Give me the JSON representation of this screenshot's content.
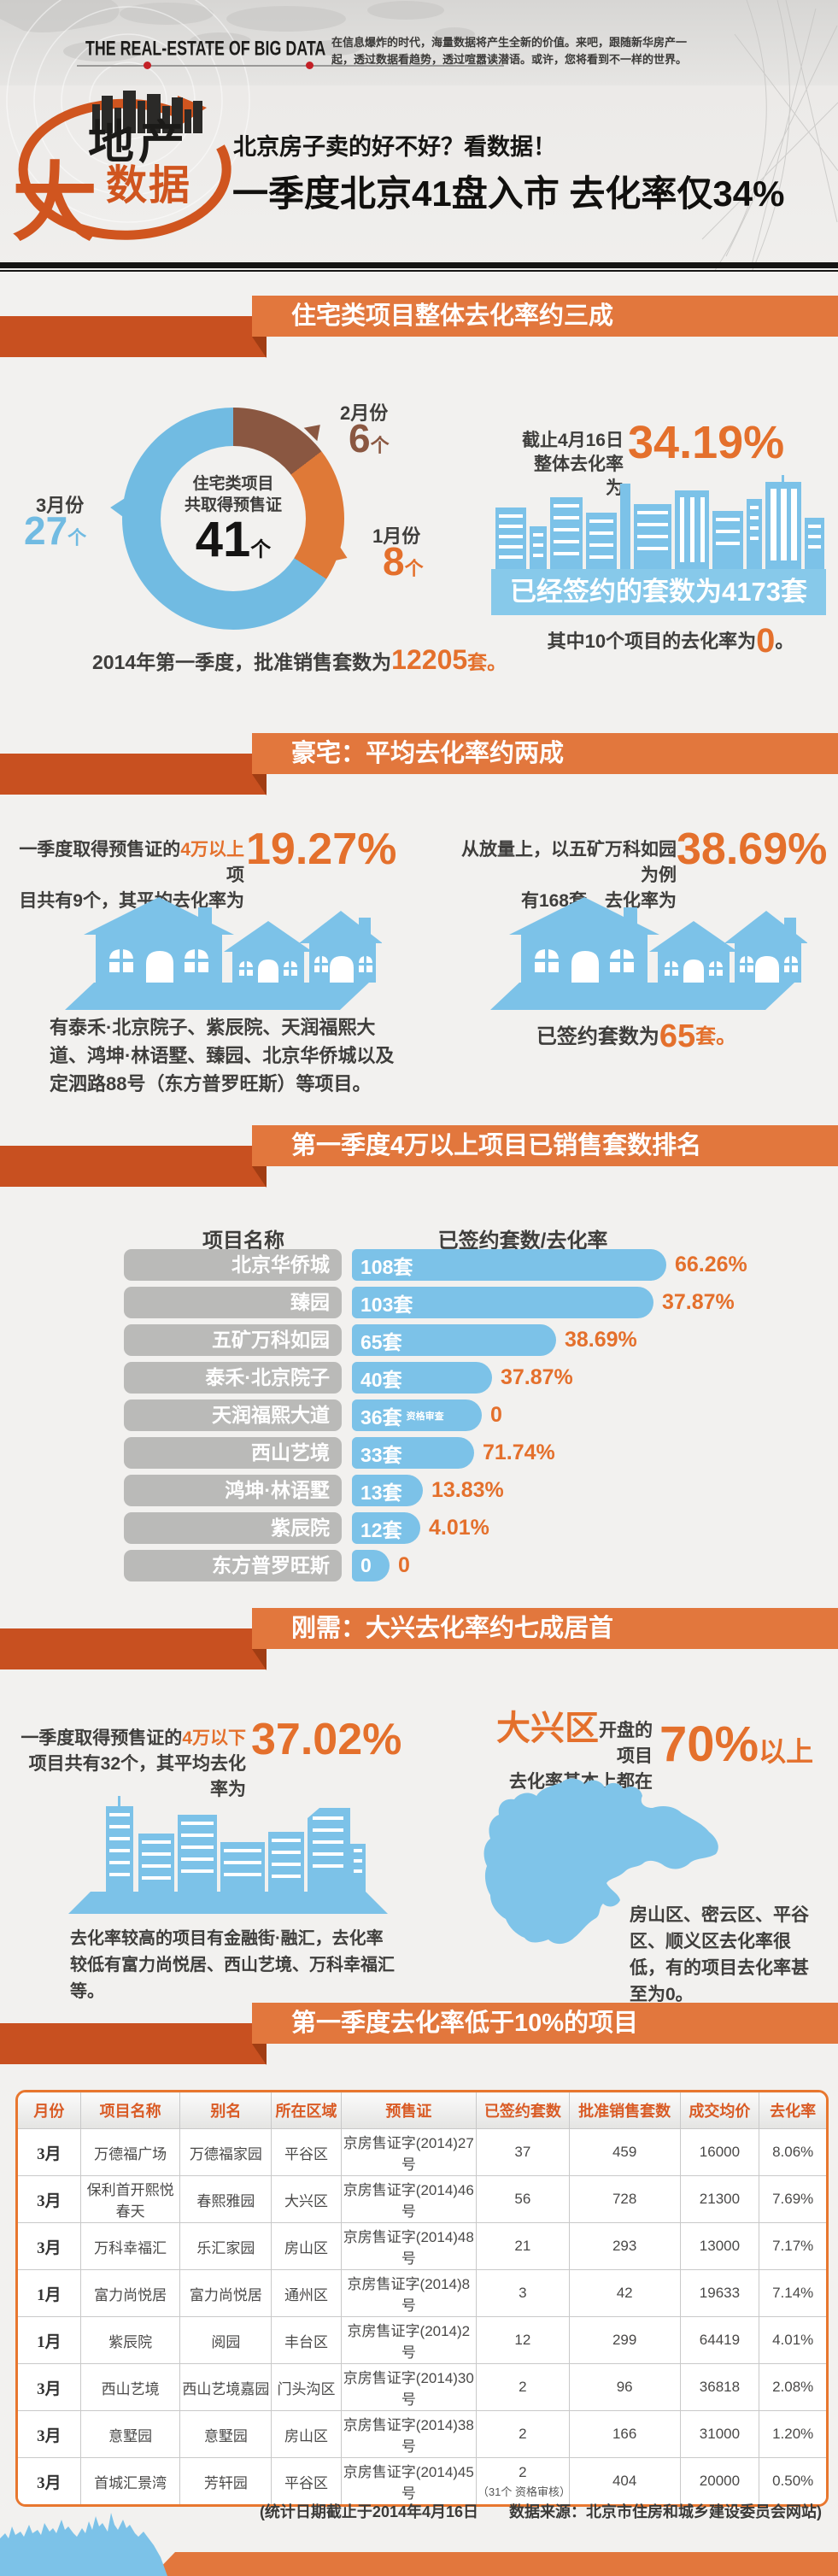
{
  "banner": {
    "en_title": "THE  REAL-ESTATE OF BIG DATA",
    "intro_line1": "在信息爆炸的时代，海量数据将产生全新的价值。来吧，跟随新华房产一",
    "intro_line2": "起，透过数据看趋势，透过喧嚣读潜语。或许，您将看到不一样的世界。"
  },
  "hero": {
    "logo_big": "大",
    "logo_word1": "地产",
    "logo_word2": "数据",
    "subtitle": "北京房子卖的好不好？看数据！",
    "title": "一季度北京41盘入市 去化率仅34%"
  },
  "colors": {
    "accent_orange": "#E4702C",
    "ribbon_orange": "#E2773D",
    "ribbon_dark": "#C85020",
    "blue": "#7CC2E8",
    "brown": "#8A5741"
  },
  "sections": {
    "s1": {
      "header": "住宅类项目整体去化率约三成",
      "donut": {
        "center_line1": "住宅类项目",
        "center_line2": "共取得预售证",
        "total": "41",
        "unit": "个",
        "feb_label": "2月份",
        "feb_value": "6",
        "feb_unit": "个",
        "jan_label": "1月份",
        "jan_value": "8",
        "jan_unit": "个",
        "mar_label": "3月份",
        "mar_value": "27",
        "mar_unit": "个"
      },
      "approved_prefix": "2014年第一季度，批准销售套数为",
      "approved_value": "12205",
      "approved_suffix": "套。",
      "right": {
        "line1": "截止4月16日",
        "line2": "整体去化率为",
        "rate": "34.19%",
        "band": "已经签约的套数为4173套",
        "below_prefix": "其中10个项目的去化率为",
        "below_value": "0",
        "below_suffix": "。"
      }
    },
    "s2": {
      "header": "豪宅：平均去化率约两成",
      "left": {
        "p1": "一季度取得预售证的",
        "hl": "4万以上",
        "p1b": "项",
        "p2": "目共有9个，其平均去化率为",
        "rate": "19.27%",
        "note": "有泰禾·北京院子、紫辰院、天润福熙大道、鸿坤·林语墅、臻园、北京华侨城以及定泗路88号（东方普罗旺斯）等项目。"
      },
      "right": {
        "p1": "从放量上，以五矿万科如园为例",
        "p2": "有168套，去化率为",
        "rate": "38.69%",
        "signed_prefix": "已签约套数为",
        "signed_value": "65",
        "signed_suffix": "套。"
      }
    },
    "s3": {
      "header": "第一季度4万以上项目已销售套数排名",
      "col1": "项目名称",
      "col2": "已签约套数/去化率",
      "rows": [
        {
          "name": "北京华侨城",
          "count": 108,
          "count_label": "108套",
          "note": "",
          "rate_label": "66.26%"
        },
        {
          "name": "臻园",
          "count": 103,
          "count_label": "103套",
          "note": "",
          "rate_label": "37.87%"
        },
        {
          "name": "五矿万科如园",
          "count": 65,
          "count_label": "65套",
          "note": "",
          "rate_label": "38.69%"
        },
        {
          "name": "泰禾·北京院子",
          "count": 40,
          "count_label": "40套",
          "note": "",
          "rate_label": "37.87%"
        },
        {
          "name": "天润福熙大道",
          "count": 36,
          "count_label": "36套",
          "note": "资格审查",
          "rate_label": "0"
        },
        {
          "name": "西山艺境",
          "count": 33,
          "count_label": "33套",
          "note": "",
          "rate_label": "71.74%"
        },
        {
          "name": "鸿坤·林语墅",
          "count": 13,
          "count_label": "13套",
          "note": "",
          "rate_label": "13.83%"
        },
        {
          "name": "紫辰院",
          "count": 12,
          "count_label": "12套",
          "note": "",
          "rate_label": "4.01%"
        },
        {
          "name": "东方普罗旺斯",
          "count": 0,
          "count_label": "0",
          "note": "",
          "rate_label": "0"
        }
      ]
    },
    "s4": {
      "header": "刚需：大兴去化率约七成居首",
      "left": {
        "p1": "一季度取得预售证的",
        "hl": "4万以下",
        "p2": "项目共有32个，其平均去化率为",
        "rate": "37.02%",
        "note": "去化率较高的项目有金融街·融汇，去化率较低有富力尚悦居、西山艺境、万科幸福汇等。"
      },
      "right": {
        "district": "大兴区",
        "p1": "开盘的项目",
        "p2": "去化率基本上都在",
        "rate": "70%",
        "rate_suffix": "以上",
        "note": "房山区、密云区、平谷区、顺义区去化率很低，有的项目去化率甚至为0。"
      }
    },
    "s5": {
      "header": "第一季度去化率低于10%的项目"
    }
  },
  "footer": {
    "note": "(统计日期截止于2014年4月16日　　数据来源：北京市住房和城乡建设委员会网站)"
  },
  "chart_data": [
    {
      "type": "pie",
      "title": "住宅类项目共取得预售证41个",
      "labels": [
        "1月份",
        "2月份",
        "3月份"
      ],
      "values": [
        8,
        6,
        27
      ],
      "unit": "个",
      "colors": [
        "#DF7937",
        "#8A5741",
        "#71BBE2"
      ],
      "legend_position": "around",
      "note": "2014年第一季度，批准销售套数为12205套"
    },
    {
      "type": "bar",
      "title": "第一季度4万以上项目已销售套数排名",
      "orientation": "horizontal",
      "categories": [
        "北京华侨城",
        "臻园",
        "五矿万科如园",
        "泰禾·北京院子",
        "天润福熙大道",
        "西山艺境",
        "鸿坤·林语墅",
        "紫辰院",
        "东方普罗旺斯"
      ],
      "series": [
        {
          "name": "已签约套数(套)",
          "values": [
            108,
            103,
            65,
            40,
            36,
            33,
            13,
            12,
            0
          ]
        },
        {
          "name": "去化率",
          "values": [
            "66.26%",
            "37.87%",
            "38.69%",
            "37.87%",
            "0",
            "71.74%",
            "13.83%",
            "4.01%",
            "0"
          ]
        }
      ],
      "annotation": "天润福熙大道36套为资格审查"
    },
    {
      "type": "table",
      "title": "第一季度去化率低于10%的项目",
      "headers": [
        "月份",
        "项目名称",
        "别名",
        "所在区域",
        "预售证",
        "已签约套数",
        "批准销售套数",
        "成交均价",
        "去化率"
      ],
      "rows": [
        [
          "3月",
          "万德福广场",
          "万德福家园",
          "平谷区",
          "京房售证字(2014)27号",
          "37",
          "459",
          "16000",
          "8.06%"
        ],
        [
          "3月",
          "保利首开熙悦春天",
          "春熙雅园",
          "大兴区",
          "京房售证字(2014)46号",
          "56",
          "728",
          "21300",
          "7.69%"
        ],
        [
          "3月",
          "万科幸福汇",
          "乐汇家园",
          "房山区",
          "京房售证字(2014)48号",
          "21",
          "293",
          "13000",
          "7.17%"
        ],
        [
          "1月",
          "富力尚悦居",
          "富力尚悦居",
          "通州区",
          "京房售证字(2014)8号",
          "3",
          "42",
          "19633",
          "7.14%"
        ],
        [
          "1月",
          "紫辰院",
          "阅园",
          "丰台区",
          "京房售证字(2014)2号",
          "12",
          "299",
          "64419",
          "4.01%"
        ],
        [
          "3月",
          "西山艺境",
          "西山艺境嘉园",
          "门头沟区",
          "京房售证字(2014)30号",
          "2",
          "96",
          "36818",
          "2.08%"
        ],
        [
          "3月",
          "意墅园",
          "意墅园",
          "房山区",
          "京房售证字(2014)38号",
          "2",
          "166",
          "31000",
          "1.20%"
        ],
        [
          "3月",
          "首城汇景湾",
          "芳轩园",
          "平谷区",
          "京房售证字(2014)45号",
          "2",
          "404",
          "20000",
          "0.50%"
        ]
      ],
      "signed_note_row": 7,
      "signed_note": "（31个 资格审核）"
    }
  ]
}
